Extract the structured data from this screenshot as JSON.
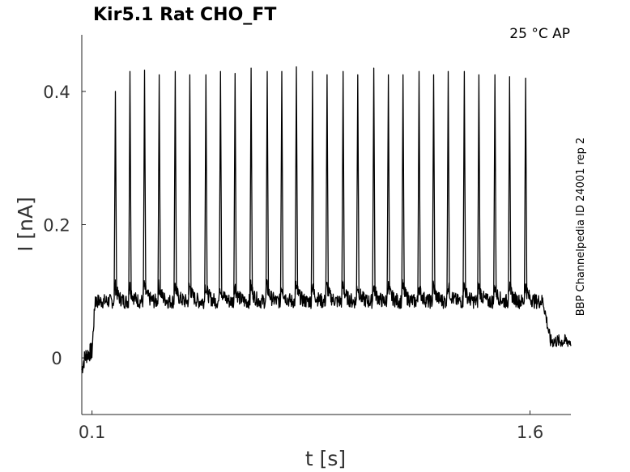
{
  "chart_data": {
    "type": "line",
    "title": "Kir5.1  Rat  CHO_FT",
    "condition": "25 °C  AP",
    "source_note": "BBP Channelpedia ID 24001 rep 2",
    "xlabel": "t [s]",
    "ylabel": "I [nA]",
    "xlim": [
      0.065,
      1.74
    ],
    "ylim": [
      -0.085,
      0.485
    ],
    "xticks": [
      0.1,
      1.6
    ],
    "xtick_labels": [
      "0.1",
      "1.6"
    ],
    "yticks": [
      0,
      0.2,
      0.4
    ],
    "ytick_labels": [
      "0",
      "0.2",
      "0.4"
    ],
    "grid": false,
    "legend": "none",
    "series": [
      {
        "color": "#000000",
        "baseline_pre": 0.01,
        "plateau": 0.085,
        "baseline_post": 0.025,
        "step_on_s": 0.1,
        "step_off_s": 1.645,
        "spike_times_s": [
          0.18,
          0.23,
          0.28,
          0.33,
          0.385,
          0.435,
          0.49,
          0.54,
          0.59,
          0.645,
          0.7,
          0.75,
          0.8,
          0.855,
          0.905,
          0.96,
          1.01,
          1.065,
          1.115,
          1.165,
          1.22,
          1.27,
          1.32,
          1.375,
          1.425,
          1.48,
          1.53,
          1.585
        ],
        "spike_peaks_nA": [
          0.4,
          0.43,
          0.432,
          0.425,
          0.43,
          0.425,
          0.425,
          0.43,
          0.427,
          0.435,
          0.43,
          0.43,
          0.437,
          0.43,
          0.425,
          0.43,
          0.425,
          0.435,
          0.425,
          0.425,
          0.43,
          0.425,
          0.43,
          0.43,
          0.425,
          0.425,
          0.422,
          0.42
        ]
      }
    ]
  }
}
